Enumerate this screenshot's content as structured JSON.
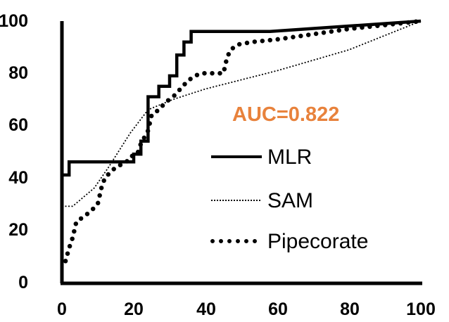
{
  "chart_data": {
    "type": "line",
    "title": "",
    "xlabel": "",
    "ylabel": "",
    "xlim": [
      0,
      100
    ],
    "ylim": [
      0,
      100
    ],
    "x_ticks": [
      "0",
      "20",
      "40",
      "60",
      "80",
      "100"
    ],
    "y_ticks": [
      "0",
      "20",
      "40",
      "60",
      "80",
      "100"
    ],
    "grid": false,
    "legend_position": "right",
    "annotation": {
      "text": "AUC=0.822",
      "color": "#e8823c"
    },
    "series": [
      {
        "name": "MLR",
        "style": "solid",
        "color": "#000000",
        "points": [
          [
            0,
            41
          ],
          [
            2,
            41
          ],
          [
            2,
            46
          ],
          [
            20,
            46
          ],
          [
            20,
            49
          ],
          [
            22,
            49
          ],
          [
            22,
            54
          ],
          [
            24,
            54
          ],
          [
            24,
            71
          ],
          [
            27,
            71
          ],
          [
            27,
            75
          ],
          [
            30,
            75
          ],
          [
            30,
            79
          ],
          [
            32,
            79
          ],
          [
            32,
            87
          ],
          [
            34,
            87
          ],
          [
            34,
            92
          ],
          [
            36,
            92
          ],
          [
            36,
            96
          ],
          [
            58,
            96
          ],
          [
            100,
            100
          ]
        ]
      },
      {
        "name": "SAM",
        "style": "dotted",
        "color": "#000000",
        "points": [
          [
            0,
            29
          ],
          [
            3,
            29
          ],
          [
            9,
            36
          ],
          [
            13,
            44
          ],
          [
            19,
            57
          ],
          [
            24,
            66
          ],
          [
            31,
            70
          ],
          [
            40,
            74
          ],
          [
            60,
            81
          ],
          [
            80,
            89
          ],
          [
            100,
            100
          ]
        ]
      },
      {
        "name": "Pipecorate",
        "style": "dots",
        "color": "#000000",
        "points": [
          [
            1,
            8
          ],
          [
            2,
            13
          ],
          [
            3,
            17
          ],
          [
            4,
            23
          ],
          [
            6,
            25
          ],
          [
            8,
            27
          ],
          [
            10,
            30
          ],
          [
            11,
            36
          ],
          [
            12,
            40
          ],
          [
            15,
            44
          ],
          [
            18,
            46
          ],
          [
            19,
            48
          ],
          [
            21,
            49
          ],
          [
            22,
            53
          ],
          [
            24,
            58
          ],
          [
            25,
            64
          ],
          [
            27,
            66
          ],
          [
            29,
            69
          ],
          [
            31,
            71
          ],
          [
            33,
            74
          ],
          [
            35,
            77
          ],
          [
            37,
            79
          ],
          [
            39,
            80
          ],
          [
            43,
            80
          ],
          [
            45,
            80
          ],
          [
            46,
            86
          ],
          [
            47,
            89
          ],
          [
            49,
            91
          ],
          [
            53,
            92
          ],
          [
            60,
            93
          ],
          [
            70,
            95
          ],
          [
            80,
            97
          ],
          [
            90,
            98.5
          ],
          [
            100,
            100
          ]
        ]
      }
    ]
  }
}
